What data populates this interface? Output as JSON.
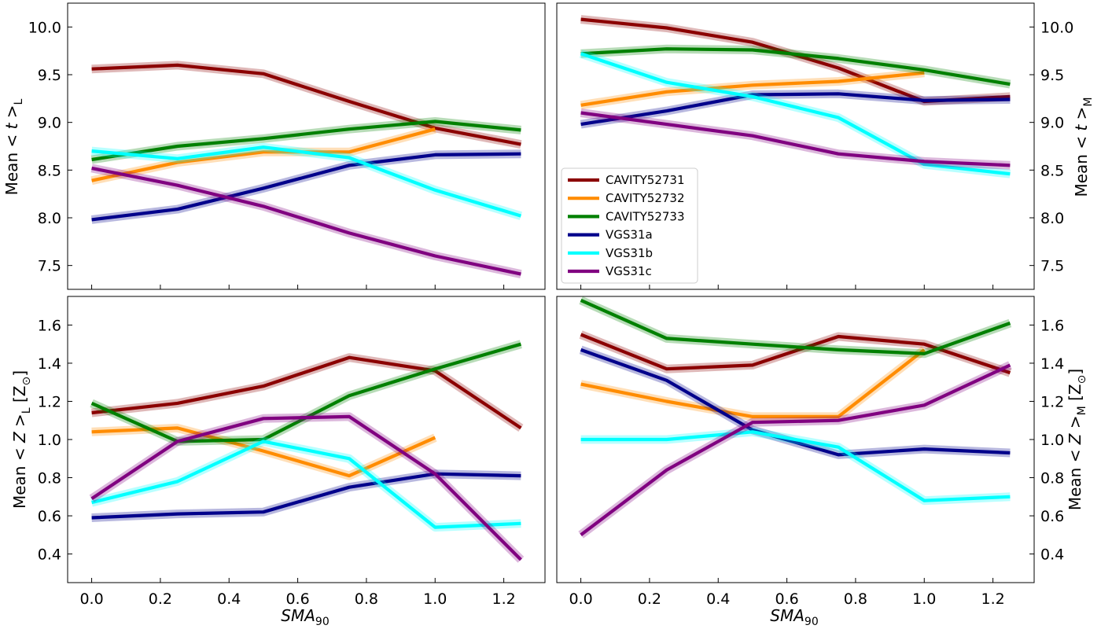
{
  "figure": {
    "colors": {
      "CAVITY52731": "#8b0000",
      "CAVITY52732": "#ff8c00",
      "CAVITY52733": "#008000",
      "VGS31a": "#00008b",
      "VGS31b": "#00ffff",
      "VGS31c": "#800080"
    }
  },
  "chart_data": [
    {
      "type": "line",
      "panel": "top-left",
      "ylabel": "Mean  < t >_L",
      "xlim": [
        -0.07,
        1.32
      ],
      "ylim": [
        7.25,
        10.25
      ],
      "yticks": [
        "7.5",
        "8.0",
        "8.5",
        "9.0",
        "9.5",
        "10.0"
      ],
      "xticks": [],
      "x": [
        0.0,
        0.25,
        0.5,
        0.75,
        1.0,
        1.25
      ],
      "series": [
        {
          "name": "CAVITY52731",
          "values": [
            9.56,
            9.6,
            9.51,
            9.22,
            8.94,
            8.77
          ]
        },
        {
          "name": "CAVITY52732",
          "values": [
            8.39,
            8.58,
            8.69,
            8.69,
            8.93,
            null
          ]
        },
        {
          "name": "CAVITY52733",
          "values": [
            8.61,
            8.75,
            8.83,
            8.93,
            9.01,
            8.92
          ]
        },
        {
          "name": "VGS31a",
          "values": [
            7.98,
            8.09,
            8.31,
            8.55,
            8.66,
            8.67
          ]
        },
        {
          "name": "VGS31b",
          "values": [
            8.7,
            8.62,
            8.74,
            8.63,
            8.29,
            8.02
          ]
        },
        {
          "name": "VGS31c",
          "values": [
            8.52,
            8.34,
            8.12,
            7.84,
            7.6,
            7.41
          ]
        }
      ]
    },
    {
      "type": "line",
      "panel": "top-right",
      "ylabel": "Mean  < t >_M",
      "xlim": [
        -0.07,
        1.32
      ],
      "ylim": [
        7.25,
        10.25
      ],
      "yticks": [
        "7.5",
        "8.0",
        "8.5",
        "9.0",
        "9.5",
        "10.0"
      ],
      "xticks": [],
      "legend": "center-left",
      "x": [
        0.0,
        0.25,
        0.5,
        0.75,
        1.0,
        1.25
      ],
      "series": [
        {
          "name": "CAVITY52731",
          "values": [
            10.08,
            9.99,
            9.84,
            9.57,
            9.22,
            9.27
          ]
        },
        {
          "name": "CAVITY52732",
          "values": [
            9.18,
            9.32,
            9.39,
            9.43,
            9.52,
            null
          ]
        },
        {
          "name": "CAVITY52733",
          "values": [
            9.72,
            9.77,
            9.76,
            9.67,
            9.55,
            9.4
          ]
        },
        {
          "name": "VGS31a",
          "values": [
            8.98,
            9.12,
            9.29,
            9.3,
            9.23,
            9.24
          ]
        },
        {
          "name": "VGS31b",
          "values": [
            9.72,
            9.42,
            9.27,
            9.05,
            8.56,
            8.46
          ]
        },
        {
          "name": "VGS31c",
          "values": [
            9.1,
            8.98,
            8.86,
            8.67,
            8.59,
            8.55
          ]
        }
      ]
    },
    {
      "type": "line",
      "panel": "bottom-left",
      "ylabel": "Mean  < Z >_L [Z_⊙]",
      "xlabel": "SMA_90",
      "xlim": [
        -0.07,
        1.32
      ],
      "ylim": [
        0.25,
        1.75
      ],
      "yticks": [
        "0.4",
        "0.6",
        "0.8",
        "1.0",
        "1.2",
        "1.4",
        "1.6"
      ],
      "xticks": [
        "0.0",
        "0.2",
        "0.4",
        "0.6",
        "0.8",
        "1.0",
        "1.2"
      ],
      "x": [
        0.0,
        0.25,
        0.5,
        0.75,
        1.0,
        1.25
      ],
      "series": [
        {
          "name": "CAVITY52731",
          "values": [
            1.14,
            1.19,
            1.28,
            1.43,
            1.36,
            1.06
          ]
        },
        {
          "name": "CAVITY52732",
          "values": [
            1.04,
            1.06,
            0.94,
            0.81,
            1.01,
            null
          ]
        },
        {
          "name": "CAVITY52733",
          "values": [
            1.19,
            0.99,
            1.0,
            1.23,
            1.37,
            1.5
          ]
        },
        {
          "name": "VGS31a",
          "values": [
            0.59,
            0.61,
            0.62,
            0.75,
            0.82,
            0.81
          ]
        },
        {
          "name": "VGS31b",
          "values": [
            0.67,
            0.78,
            0.99,
            0.9,
            0.54,
            0.56
          ]
        },
        {
          "name": "VGS31c",
          "values": [
            0.69,
            0.99,
            1.11,
            1.12,
            0.82,
            0.37
          ]
        }
      ]
    },
    {
      "type": "line",
      "panel": "bottom-right",
      "ylabel": "Mean  < Z >_M [Z_⊙]",
      "xlabel": "SMA_90",
      "xlim": [
        -0.07,
        1.32
      ],
      "ylim": [
        0.25,
        1.75
      ],
      "yticks": [
        "0.4",
        "0.6",
        "0.8",
        "1.0",
        "1.2",
        "1.4",
        "1.6"
      ],
      "xticks": [
        "0.0",
        "0.2",
        "0.4",
        "0.6",
        "0.8",
        "1.0",
        "1.2"
      ],
      "x": [
        0.0,
        0.25,
        0.5,
        0.75,
        1.0,
        1.25
      ],
      "series": [
        {
          "name": "CAVITY52731",
          "values": [
            1.55,
            1.37,
            1.39,
            1.54,
            1.5,
            1.35
          ]
        },
        {
          "name": "CAVITY52732",
          "values": [
            1.29,
            1.2,
            1.12,
            1.12,
            1.47,
            null
          ]
        },
        {
          "name": "CAVITY52733",
          "values": [
            1.73,
            1.53,
            1.5,
            1.47,
            1.45,
            1.61
          ]
        },
        {
          "name": "VGS31a",
          "values": [
            1.47,
            1.31,
            1.05,
            0.92,
            0.95,
            0.93
          ]
        },
        {
          "name": "VGS31b",
          "values": [
            1.0,
            1.0,
            1.04,
            0.96,
            0.68,
            0.7
          ]
        },
        {
          "name": "VGS31c",
          "values": [
            0.5,
            0.84,
            1.09,
            1.1,
            1.18,
            1.39
          ]
        }
      ]
    }
  ]
}
